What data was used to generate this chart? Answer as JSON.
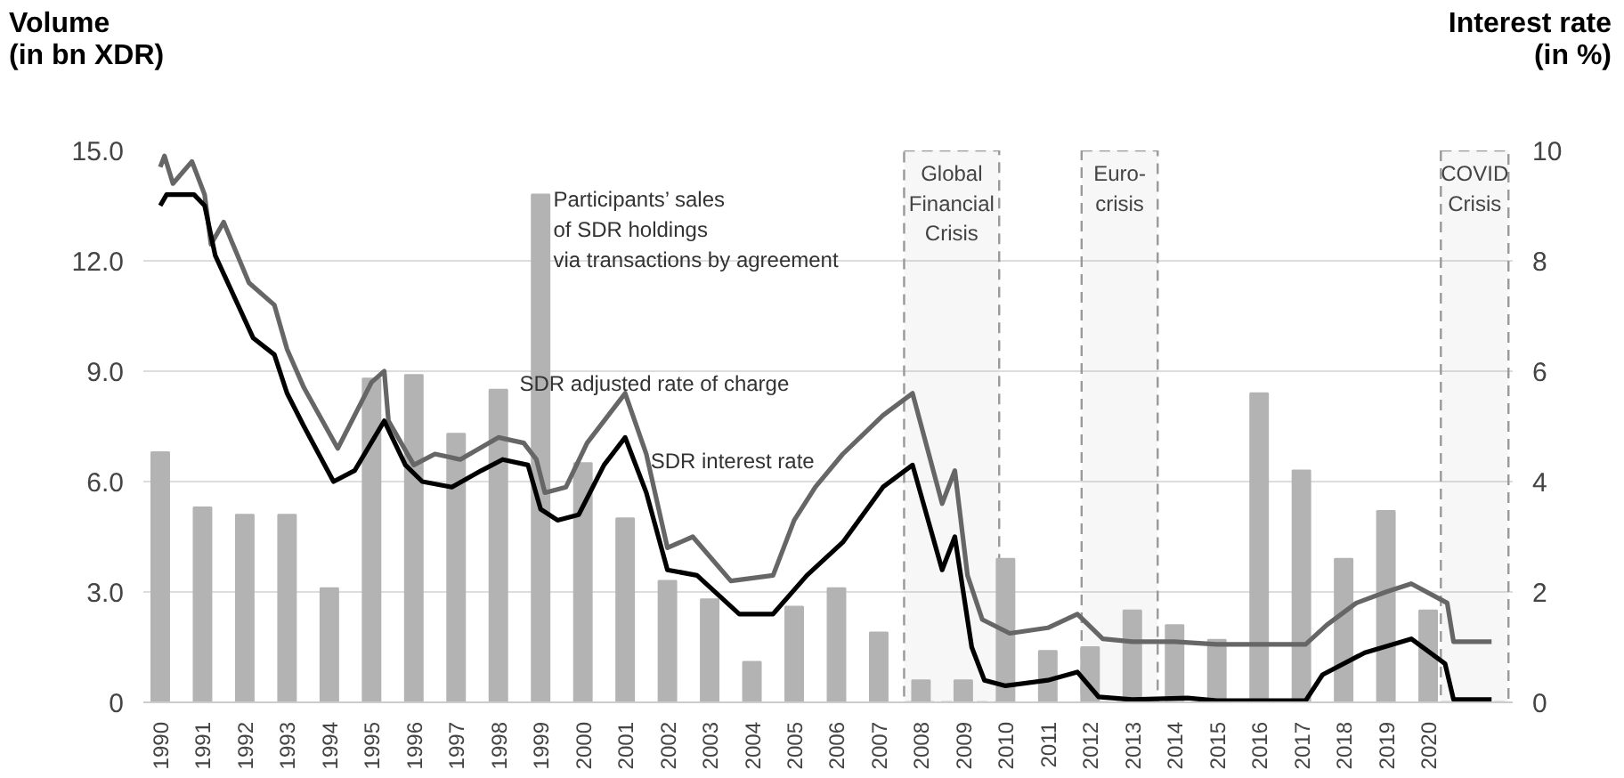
{
  "chart_data": {
    "type": "bar",
    "ylabel": "Volume\n(in bn XDR)",
    "y2label": "Interest rate\n(in %)",
    "x": [
      1990,
      1991,
      1992,
      1993,
      1994,
      1995,
      1996,
      1997,
      1998,
      1999,
      2000,
      2001,
      2002,
      2003,
      2004,
      2005,
      2006,
      2007,
      2008,
      2009,
      2010,
      2011,
      2012,
      2013,
      2014,
      2015,
      2016,
      2017,
      2018,
      2019,
      2020
    ],
    "xlim": [
      1989.6,
      2022.0
    ],
    "xticks": [
      1990,
      1991,
      1992,
      1993,
      1994,
      1995,
      1996,
      1997,
      1998,
      1999,
      2000,
      2001,
      2002,
      2003,
      2004,
      2005,
      2006,
      2007,
      2008,
      2009,
      2010,
      2011,
      2012,
      2013,
      2014,
      2015,
      2016,
      2017,
      2018,
      2019,
      2020
    ],
    "ylim": [
      0,
      15
    ],
    "yticks": [
      {
        "value": 0,
        "label": "0"
      },
      {
        "value": 3,
        "label": "3.0"
      },
      {
        "value": 6,
        "label": "6.0"
      },
      {
        "value": 9,
        "label": "9.0"
      },
      {
        "value": 12,
        "label": "12.0"
      },
      {
        "value": 15,
        "label": "15.0"
      }
    ],
    "y2lim": [
      0,
      10
    ],
    "y2ticks": [
      0,
      2,
      4,
      6,
      8,
      10
    ],
    "grid": "y",
    "line_style": "solid",
    "series": [
      {
        "color": "#b3b3b3",
        "values": [
          6.8,
          5.3,
          5.1,
          5.1,
          3.1,
          8.8,
          8.9,
          7.3,
          8.5,
          13.8,
          6.5,
          5.0,
          3.3,
          2.8,
          1.1,
          2.6,
          3.1,
          1.9,
          0.6,
          0.6,
          3.9,
          1.4,
          1.5,
          2.5,
          2.1,
          1.7,
          8.4,
          6.3,
          3.9,
          5.2,
          2.5
        ]
      },
      {
        "type": "line",
        "axis": "y2",
        "color": "#666666",
        "x": [
          1990.0,
          1990.1,
          1990.3,
          1990.75,
          1991.05,
          1991.2,
          1991.5,
          1992.1,
          1992.7,
          1993.0,
          1993.4,
          1994.2,
          1995.0,
          1995.3,
          1995.4,
          1996.0,
          1996.5,
          1997.1,
          1998.0,
          1998.6,
          1998.9,
          1999.1,
          1999.6,
          2000.1,
          2001.0,
          2001.5,
          2002.0,
          2002.6,
          2003.5,
          2004.5,
          2005.0,
          2005.5,
          2006.15,
          2007.1,
          2007.8,
          2008.5,
          2008.8,
          2009.1,
          2009.45,
          2010.1,
          2011.0,
          2011.7,
          2012.3,
          2013.0,
          2014.0,
          2015.0,
          2016.0,
          2017.1,
          2017.6,
          2018.3,
          2019.0,
          2019.6,
          2020.45,
          2020.6,
          2021.0,
          2021.5
        ],
        "values": [
          9.7,
          9.9,
          9.4,
          9.8,
          9.2,
          8.3,
          8.7,
          7.6,
          7.2,
          6.4,
          5.7,
          4.6,
          5.8,
          6.0,
          5.1,
          4.3,
          4.5,
          4.4,
          4.8,
          4.7,
          4.4,
          3.8,
          3.9,
          4.7,
          5.6,
          4.5,
          2.8,
          3.0,
          2.2,
          2.3,
          3.3,
          3.9,
          4.5,
          5.2,
          5.6,
          3.6,
          4.2,
          2.3,
          1.5,
          1.25,
          1.35,
          1.6,
          1.15,
          1.1,
          1.1,
          1.05,
          1.05,
          1.05,
          1.4,
          1.8,
          2.0,
          2.15,
          1.8,
          1.1,
          1.1,
          1.1
        ]
      },
      {
        "type": "line",
        "axis": "y2",
        "color": "#000000",
        "x": [
          1990.0,
          1990.15,
          1990.8,
          1991.05,
          1991.3,
          1991.6,
          1992.2,
          1992.7,
          1993.0,
          1993.4,
          1994.1,
          1994.6,
          1995.3,
          1995.8,
          1996.2,
          1996.9,
          1997.6,
          1998.1,
          1998.7,
          1999.0,
          1999.4,
          1999.9,
          2000.5,
          2001.0,
          2001.5,
          2002.0,
          2002.7,
          2003.7,
          2004.5,
          2005.3,
          2006.15,
          2007.1,
          2007.8,
          2008.5,
          2008.8,
          2009.2,
          2009.5,
          2010.0,
          2011.0,
          2011.7,
          2012.2,
          2013.0,
          2014.3,
          2015.0,
          2017.1,
          2017.5,
          2018.5,
          2019.6,
          2020.4,
          2020.6,
          2021.5
        ],
        "values": [
          9.0,
          9.2,
          9.2,
          9.0,
          8.1,
          7.6,
          6.6,
          6.3,
          5.6,
          5.0,
          4.0,
          4.2,
          5.1,
          4.3,
          4.0,
          3.9,
          4.2,
          4.4,
          4.3,
          3.5,
          3.3,
          3.4,
          4.3,
          4.8,
          3.8,
          2.4,
          2.3,
          1.6,
          1.6,
          2.3,
          2.9,
          3.9,
          4.3,
          2.4,
          3.0,
          1.0,
          0.4,
          0.3,
          0.4,
          0.55,
          0.1,
          0.05,
          0.08,
          0.03,
          0.03,
          0.5,
          0.9,
          1.15,
          0.7,
          0.05,
          0.05
        ]
      }
    ],
    "bands": [
      {
        "axis": "x",
        "from": 2007.6,
        "to": 2009.85,
        "label": "Global\nFinancial\nCrisis",
        "color": "#999999"
      },
      {
        "axis": "x",
        "from": 2011.8,
        "to": 2013.6,
        "label": "Euro-\ncrisis",
        "color": "#999999"
      },
      {
        "axis": "x",
        "from": 2020.3,
        "to": 2021.9,
        "label": "COVID\nCrisis",
        "color": "#999999"
      }
    ],
    "annotations": [
      "Participants’ sales\nof SDR holdings\nvia transactions by agreement",
      "SDR adjusted rate of charge",
      "SDR interest rate"
    ]
  }
}
